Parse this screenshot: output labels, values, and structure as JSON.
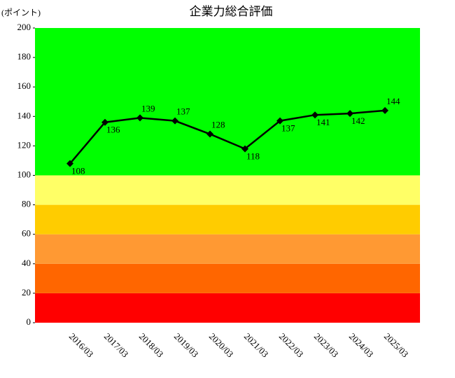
{
  "chart_data": {
    "type": "line",
    "title": "企業力総合評価",
    "y_label": "(ポイント)",
    "categories": [
      "2016/03",
      "2017/03",
      "2018/03",
      "2019/03",
      "2020/03",
      "2021/03",
      "2022/03",
      "2023/03",
      "2024/03",
      "2025/03"
    ],
    "values": [
      108,
      136,
      139,
      137,
      128,
      118,
      137,
      141,
      142,
      144
    ],
    "color": "#000000",
    "ylim": [
      0,
      200
    ],
    "yticks": [
      0,
      20,
      40,
      60,
      80,
      100,
      120,
      140,
      160,
      180,
      200
    ],
    "bands": [
      {
        "from": 0,
        "to": 20,
        "color": "#ff0000"
      },
      {
        "from": 20,
        "to": 40,
        "color": "#ff6600"
      },
      {
        "from": 40,
        "to": 60,
        "color": "#ff9933"
      },
      {
        "from": 60,
        "to": 80,
        "color": "#ffcc00"
      },
      {
        "from": 80,
        "to": 100,
        "color": "#ffff66"
      },
      {
        "from": 100,
        "to": 200,
        "color": "#00ff00"
      }
    ]
  }
}
